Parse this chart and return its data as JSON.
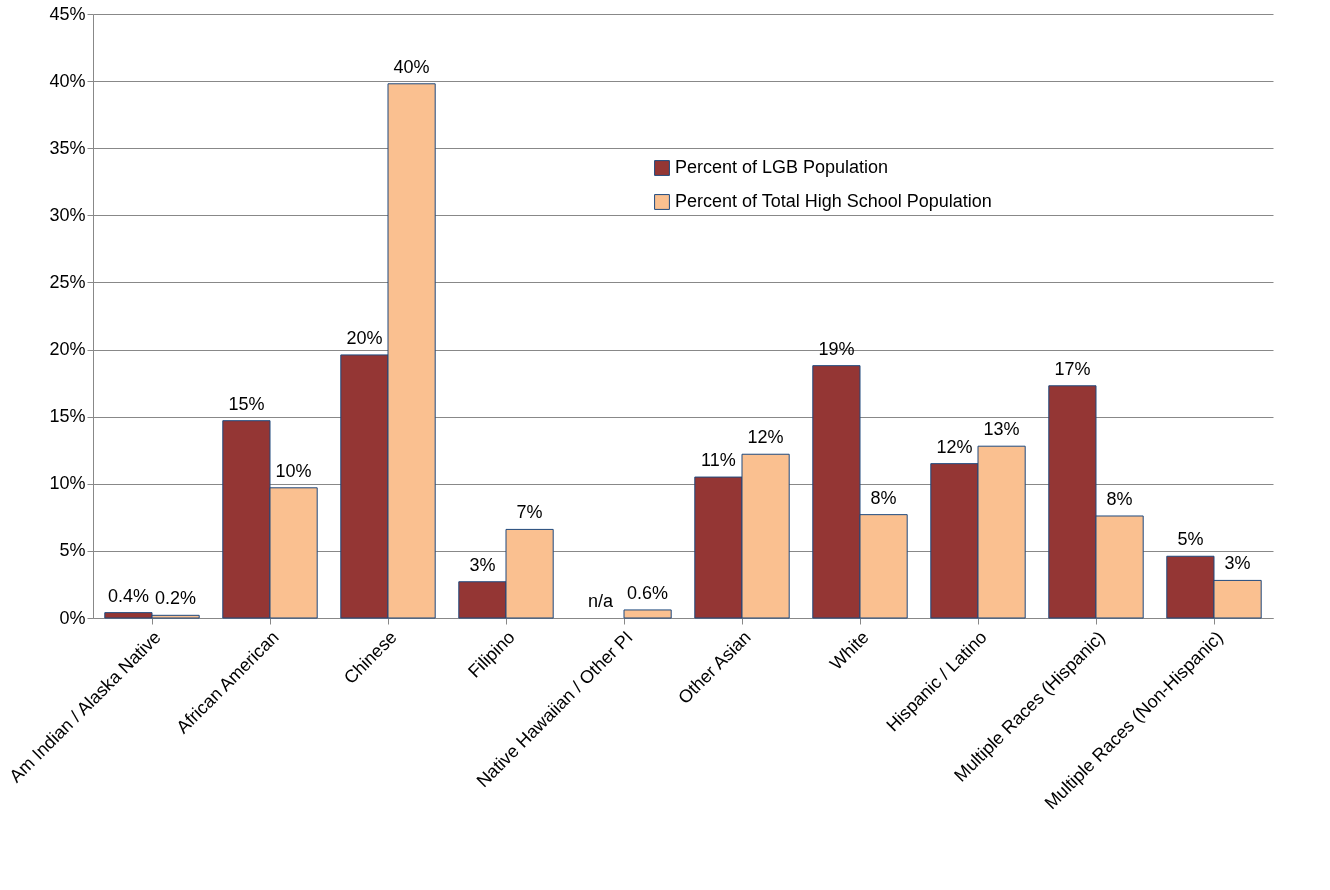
{
  "chart_data": {
    "type": "bar",
    "categories": [
      "Am Indian / Alaska Native",
      "African American",
      "Chinese",
      "Filipino",
      "Native Hawaiian / Other PI",
      "Other Asian",
      "White",
      "Hispanic / Latino",
      "Multiple Races (Hispanic)",
      "Multiple Races (Non-Hispanic)"
    ],
    "series": [
      {
        "name": "Percent of LGB Population",
        "color": "#943634",
        "values": [
          0.4,
          14.7,
          19.6,
          2.7,
          null,
          10.5,
          18.8,
          11.5,
          17.3,
          4.6
        ],
        "value_labels": [
          "0.4%",
          "15%",
          "20%",
          "3%",
          "n/a",
          "11%",
          "19%",
          "12%",
          "17%",
          "5%"
        ]
      },
      {
        "name": "Percent of Total High School Population",
        "color": "#fac090",
        "values": [
          0.2,
          9.7,
          39.8,
          6.6,
          0.6,
          12.2,
          7.7,
          12.8,
          7.6,
          2.8
        ],
        "value_labels": [
          "0.2%",
          "10%",
          "40%",
          "7%",
          "0.6%",
          "12%",
          "8%",
          "13%",
          "8%",
          "3%"
        ]
      }
    ],
    "ylim": [
      0,
      45
    ],
    "yticks": [
      {
        "value": 0,
        "label": "0%"
      },
      {
        "value": 5,
        "label": "5%"
      },
      {
        "value": 10,
        "label": "10%"
      },
      {
        "value": 15,
        "label": "15%"
      },
      {
        "value": 20,
        "label": "20%"
      },
      {
        "value": 25,
        "label": "25%"
      },
      {
        "value": 30,
        "label": "30%"
      },
      {
        "value": 35,
        "label": "35%"
      },
      {
        "value": 40,
        "label": "40%"
      },
      {
        "value": 45,
        "label": "45%"
      }
    ],
    "grid": "y",
    "legend": "top right"
  }
}
